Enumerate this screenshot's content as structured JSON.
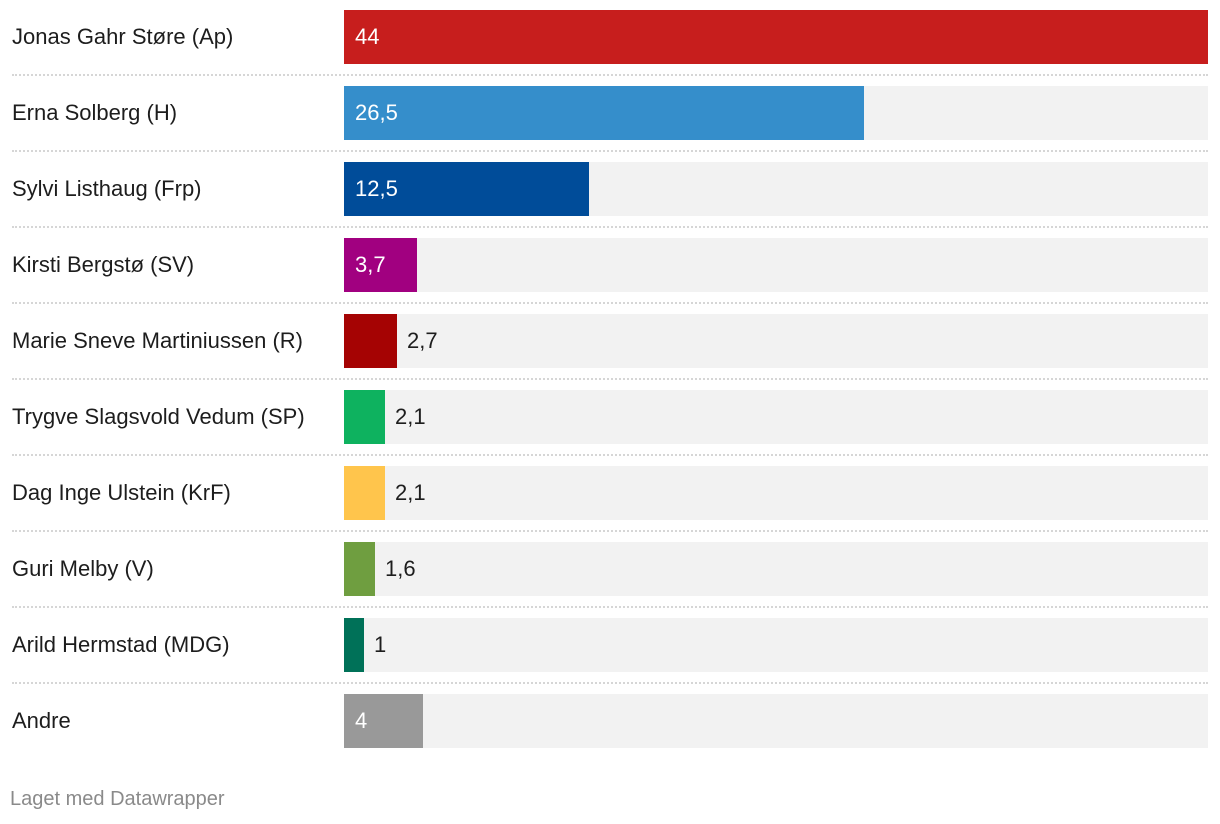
{
  "chart_data": {
    "type": "bar",
    "orientation": "horizontal",
    "categories": [
      "Jonas Gahr Støre (Ap)",
      "Erna Solberg (H)",
      "Sylvi Listhaug (Frp)",
      "Kirsti Bergstø (SV)",
      "Marie Sneve Martiniussen (R)",
      "Trygve Slagsvold Vedum (SP)",
      "Dag Inge Ulstein (KrF)",
      "Guri Melby (V)",
      "Arild Hermstad (MDG)",
      "Andre"
    ],
    "values": [
      44,
      26.5,
      12.5,
      3.7,
      2.7,
      2.1,
      2.1,
      1.6,
      1,
      4
    ],
    "value_labels": [
      "44",
      "26,5",
      "12,5",
      "3,7",
      "2,7",
      "2,1",
      "2,1",
      "1,6",
      "1",
      "4"
    ],
    "colors": [
      "#c71e1d",
      "#358ecb",
      "#004c99",
      "#a10080",
      "#a50303",
      "#0eb25f",
      "#ffc54c",
      "#6f9e40",
      "#007158",
      "#999999"
    ],
    "xlim": [
      0,
      44
    ],
    "grid": false
  },
  "footer": {
    "credit": "Laget med Datawrapper"
  }
}
